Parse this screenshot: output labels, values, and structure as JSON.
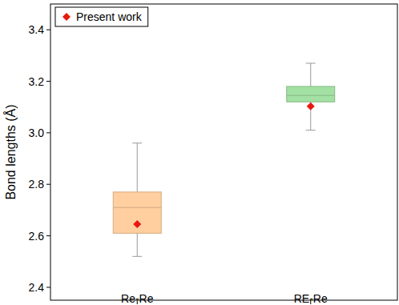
{
  "chart_data": {
    "type": "box",
    "y_label": "Bond lengths (Å)",
    "categories": [
      "Re-Re",
      "RE-Re"
    ],
    "min": [
      2.52,
      3.01
    ],
    "q1": [
      2.61,
      3.12
    ],
    "median": [
      2.71,
      3.145
    ],
    "q3": [
      2.77,
      3.18
    ],
    "max": [
      2.96,
      3.27
    ],
    "colors": [
      "#ffcf9f",
      "#a3e0a3"
    ],
    "series": [
      {
        "name": "Present work",
        "type": "scatter",
        "marker": "diamond",
        "color": "#e8190e",
        "values": [
          2.645,
          3.103
        ]
      }
    ],
    "ylim": [
      2.35,
      3.5
    ],
    "yticks": [
      2.4,
      2.6,
      2.8,
      {
        "value": 3.0,
        "label": "3.0"
      },
      3.2,
      3.4
    ],
    "legend": "upper left"
  }
}
